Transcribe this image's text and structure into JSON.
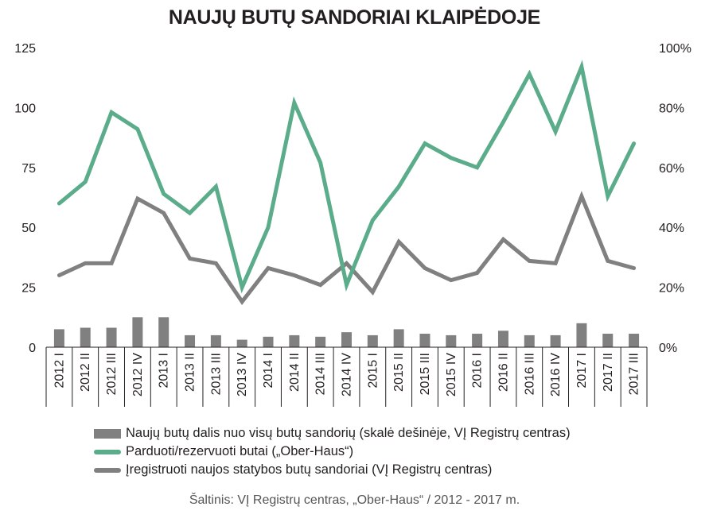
{
  "title": "NAUJŲ BUTŲ SANDORIAI KLAIPĖDOJE",
  "source": "Šaltinis: VĮ Registrų centras,  „Ober-Haus“  / 2012 - 2017 m.",
  "colors": {
    "bars": "#808080",
    "sold_line": "#5aac8a",
    "registered_line": "#808080",
    "text": "#231f20"
  },
  "chart_data": {
    "type": "bar+line",
    "title": "NAUJŲ BUTŲ SANDORIAI KLAIPĖDOJE",
    "categories": [
      "2012 I",
      "2012 II",
      "2012 III",
      "2012 IV",
      "2013 I",
      "2013 II",
      "2013 III",
      "2013 IV",
      "2014 I",
      "2014 II",
      "2014 III",
      "2014 IV",
      "2015 I",
      "2015 II",
      "2015 III",
      "2015 IV",
      "2016 I",
      "2016 II",
      "2016 III",
      "2016 IV",
      "2017 I",
      "2017 II",
      "2017 III"
    ],
    "y_left": {
      "ylim": [
        0,
        125
      ],
      "ticks": [
        "0",
        "25",
        "50",
        "75",
        "100",
        "125"
      ]
    },
    "y_right": {
      "ylim": [
        0,
        100
      ],
      "ticks": [
        "0%",
        "20%",
        "40%",
        "60%",
        "80%",
        "100%"
      ]
    },
    "grid": false,
    "legend_position": "bottom",
    "series": [
      {
        "name": "Naujų butų dalis nuo visų butų sandorių (skalė dešinėje, VĮ Registrų centras)",
        "type": "bar",
        "axis": "right",
        "unit": "%",
        "values": [
          6,
          6.5,
          6.5,
          10,
          10,
          4,
          4,
          2.5,
          3.5,
          4,
          3.5,
          5,
          4,
          6,
          4.5,
          4,
          4.5,
          5.5,
          4,
          4,
          8,
          4.5,
          4.5
        ]
      },
      {
        "name": "Parduoti/rezervuoti butai („Ober-Haus“)",
        "type": "line",
        "axis": "left",
        "values": [
          60,
          69,
          98,
          91,
          64,
          56,
          67,
          25,
          50,
          102,
          77,
          26,
          53,
          67,
          85,
          79,
          75,
          94,
          114,
          90,
          117,
          63,
          85
        ]
      },
      {
        "name": "Įregistruoti naujos statybos butų sandoriai (VĮ Registrų centras)",
        "type": "line",
        "axis": "left",
        "values": [
          30,
          35,
          35,
          62,
          56,
          37,
          35,
          19,
          33,
          30,
          26,
          35,
          23,
          44,
          33,
          28,
          31,
          45,
          36,
          35,
          63,
          36,
          33
        ]
      }
    ]
  }
}
